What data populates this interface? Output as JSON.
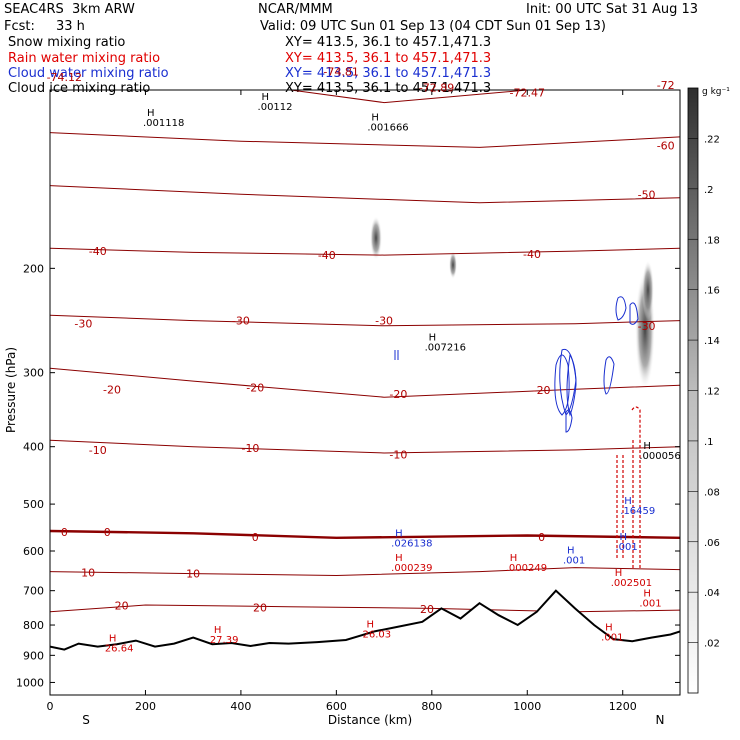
{
  "header": {
    "model": "SEAC4RS  3km ARW",
    "fcst_label": "Fcst:",
    "fcst_value": "33 h",
    "org": "NCAR/MMM",
    "init": "Init: 00 UTC Sat 31 Aug 13",
    "valid": "Valid: 09 UTC Sun 01 Sep 13 (04 CDT Sun 01 Sep 13)",
    "fields": [
      {
        "name": "Snow mixing ratio",
        "xy": "XY= 413.5, 36.1 to 457.1,471.3",
        "color": "#000000"
      },
      {
        "name": "Rain water mixing ratio",
        "xy": "XY= 413.5, 36.1 to 457.1,471.3",
        "color": "#e00000"
      },
      {
        "name": "Cloud water mixing ratio",
        "xy": "XY= 413.5, 36.1 to 457.1,471.3",
        "color": "#1a2fd0"
      },
      {
        "name": "Cloud ice mixing ratio",
        "xy": "XY= 413.5, 36.1 to 457.1,471.3",
        "color": "#000000"
      }
    ]
  },
  "chart_data": {
    "type": "cross-section",
    "xlabel": "Distance (km)",
    "ylabel": "Pressure (hPa)",
    "xlim": [
      0,
      1320
    ],
    "ylim": [
      1050,
      100
    ],
    "y_scale": "log",
    "x_ticks": [
      0,
      200,
      400,
      600,
      800,
      1000,
      1200
    ],
    "y_ticks": [
      200,
      300,
      400,
      500,
      600,
      700,
      800,
      900,
      1000
    ],
    "end_labels": {
      "left": "S",
      "right": "N"
    },
    "colorbar": {
      "unit": "g kg⁻¹",
      "ticks": [
        ".02",
        ".04",
        ".06",
        ".08",
        ".1",
        ".12",
        ".14",
        ".16",
        ".18",
        ".2",
        ".22"
      ]
    },
    "isotherms": [
      {
        "t": "-72",
        "points": [
          [
            0,
            90
          ],
          [
            300,
            95
          ],
          [
            700,
            105
          ],
          [
            1000,
            100
          ],
          [
            1320,
            95
          ]
        ]
      },
      {
        "t": "-60",
        "points": [
          [
            0,
            118
          ],
          [
            400,
            122
          ],
          [
            900,
            125
          ],
          [
            1320,
            120
          ]
        ]
      },
      {
        "t": "-50",
        "points": [
          [
            0,
            145
          ],
          [
            400,
            150
          ],
          [
            900,
            155
          ],
          [
            1320,
            152
          ]
        ]
      },
      {
        "t": "-40",
        "points": [
          [
            0,
            185
          ],
          [
            300,
            188
          ],
          [
            700,
            190
          ],
          [
            1100,
            187
          ],
          [
            1320,
            185
          ]
        ]
      },
      {
        "t": "-30",
        "points": [
          [
            0,
            240
          ],
          [
            300,
            245
          ],
          [
            700,
            250
          ],
          [
            1100,
            248
          ],
          [
            1320,
            245
          ]
        ]
      },
      {
        "t": "-20",
        "points": [
          [
            0,
            295
          ],
          [
            300,
            310
          ],
          [
            700,
            330
          ],
          [
            1100,
            320
          ],
          [
            1320,
            315
          ]
        ]
      },
      {
        "t": "-10",
        "points": [
          [
            0,
            390
          ],
          [
            300,
            400
          ],
          [
            700,
            410
          ],
          [
            1100,
            405
          ],
          [
            1320,
            400
          ]
        ]
      },
      {
        "t": "0",
        "points": [
          [
            0,
            555
          ],
          [
            300,
            560
          ],
          [
            600,
            570
          ],
          [
            1000,
            565
          ],
          [
            1320,
            570
          ]
        ]
      },
      {
        "t": "10",
        "points": [
          [
            0,
            650
          ],
          [
            300,
            655
          ],
          [
            600,
            660
          ],
          [
            900,
            650
          ],
          [
            1100,
            640
          ],
          [
            1320,
            645
          ]
        ]
      },
      {
        "t": "20",
        "points": [
          [
            0,
            760
          ],
          [
            200,
            740
          ],
          [
            500,
            745
          ],
          [
            800,
            750
          ],
          [
            1100,
            760
          ],
          [
            1320,
            755
          ]
        ]
      }
    ],
    "isotherm_labels": [
      {
        "text": "-74.12",
        "x": 30,
        "p": 95
      },
      {
        "text": "-74.81",
        "x": 610,
        "p": 93
      },
      {
        "text": "-72.89",
        "x": 810,
        "p": 99
      },
      {
        "text": "-72.47",
        "x": 1000,
        "p": 101
      },
      {
        "text": "-72",
        "x": 1290,
        "p": 98
      },
      {
        "text": "-60",
        "x": 1290,
        "p": 124
      },
      {
        "text": "-50",
        "x": 1250,
        "p": 150
      },
      {
        "text": "-40",
        "x": 100,
        "p": 187
      },
      {
        "text": "-40",
        "x": 580,
        "p": 190
      },
      {
        "text": "-40",
        "x": 1010,
        "p": 189
      },
      {
        "text": "-30",
        "x": 70,
        "p": 248
      },
      {
        "text": "-30",
        "x": 400,
        "p": 245
      },
      {
        "text": "-30",
        "x": 700,
        "p": 245
      },
      {
        "text": "-30",
        "x": 1250,
        "p": 250
      },
      {
        "text": "-20",
        "x": 130,
        "p": 320
      },
      {
        "text": "-20",
        "x": 430,
        "p": 318
      },
      {
        "text": "-20",
        "x": 730,
        "p": 326
      },
      {
        "text": "-20",
        "x": 1030,
        "p": 321
      },
      {
        "text": "-10",
        "x": 100,
        "p": 405
      },
      {
        "text": "-10",
        "x": 420,
        "p": 402
      },
      {
        "text": "-10",
        "x": 730,
        "p": 412
      },
      {
        "text": "0",
        "x": 30,
        "p": 557
      },
      {
        "text": "0",
        "x": 120,
        "p": 557
      },
      {
        "text": "0",
        "x": 430,
        "p": 568
      },
      {
        "text": "0",
        "x": 1030,
        "p": 568
      },
      {
        "text": "10",
        "x": 300,
        "p": 655
      },
      {
        "text": "10",
        "x": 80,
        "p": 652
      },
      {
        "text": "20",
        "x": 150,
        "p": 742
      },
      {
        "text": "20",
        "x": 440,
        "p": 748
      },
      {
        "text": "20",
        "x": 790,
        "p": 752
      }
    ],
    "terrain_surface": [
      [
        0,
        870
      ],
      [
        30,
        880
      ],
      [
        60,
        860
      ],
      [
        100,
        870
      ],
      [
        140,
        862
      ],
      [
        180,
        850
      ],
      [
        220,
        870
      ],
      [
        260,
        860
      ],
      [
        300,
        840
      ],
      [
        340,
        862
      ],
      [
        380,
        858
      ],
      [
        420,
        868
      ],
      [
        460,
        858
      ],
      [
        500,
        860
      ],
      [
        560,
        855
      ],
      [
        620,
        848
      ],
      [
        680,
        820
      ],
      [
        720,
        808
      ],
      [
        780,
        790
      ],
      [
        820,
        750
      ],
      [
        860,
        780
      ],
      [
        900,
        735
      ],
      [
        940,
        770
      ],
      [
        980,
        800
      ],
      [
        1020,
        760
      ],
      [
        1060,
        700
      ],
      [
        1100,
        750
      ],
      [
        1140,
        800
      ],
      [
        1180,
        845
      ],
      [
        1220,
        852
      ],
      [
        1260,
        840
      ],
      [
        1300,
        830
      ],
      [
        1320,
        820
      ]
    ],
    "max_labels": [
      {
        "kind": "snow",
        "text": ".001118",
        "x": 220,
        "p": 115
      },
      {
        "kind": "snow",
        "text": ".00112",
        "x": 460,
        "p": 108
      },
      {
        "kind": "snow",
        "text": ".001666",
        "x": 690,
        "p": 117
      },
      {
        "kind": "snow",
        "text": ".007216",
        "x": 810,
        "p": 275
      },
      {
        "kind": "snow",
        "text": ".000056",
        "x": 1260,
        "p": 420
      },
      {
        "kind": "cloud",
        "text": ".026138",
        "x": 740,
        "p": 590
      },
      {
        "kind": "cloud",
        "text": ".16459",
        "x": 1220,
        "p": 520
      },
      {
        "kind": "cloud",
        "text": ".001",
        "x": 1210,
        "p": 598
      },
      {
        "kind": "cloud",
        "text": ".001",
        "x": 1100,
        "p": 630
      },
      {
        "kind": "rain",
        "text": ".000239",
        "x": 740,
        "p": 648
      },
      {
        "kind": "rain",
        "text": ".000249",
        "x": 980,
        "p": 648
      },
      {
        "kind": "rain",
        "text": ".002501",
        "x": 1200,
        "p": 688
      },
      {
        "kind": "rain",
        "text": ".001",
        "x": 1260,
        "p": 745
      },
      {
        "kind": "rain",
        "text": ".001",
        "x": 1180,
        "p": 850
      },
      {
        "kind": "temp",
        "text": "26.64",
        "x": 140,
        "p": 886
      },
      {
        "kind": "temp",
        "text": "27.39",
        "x": 360,
        "p": 858
      },
      {
        "kind": "temp",
        "text": "26.03",
        "x": 680,
        "p": 840
      }
    ]
  }
}
